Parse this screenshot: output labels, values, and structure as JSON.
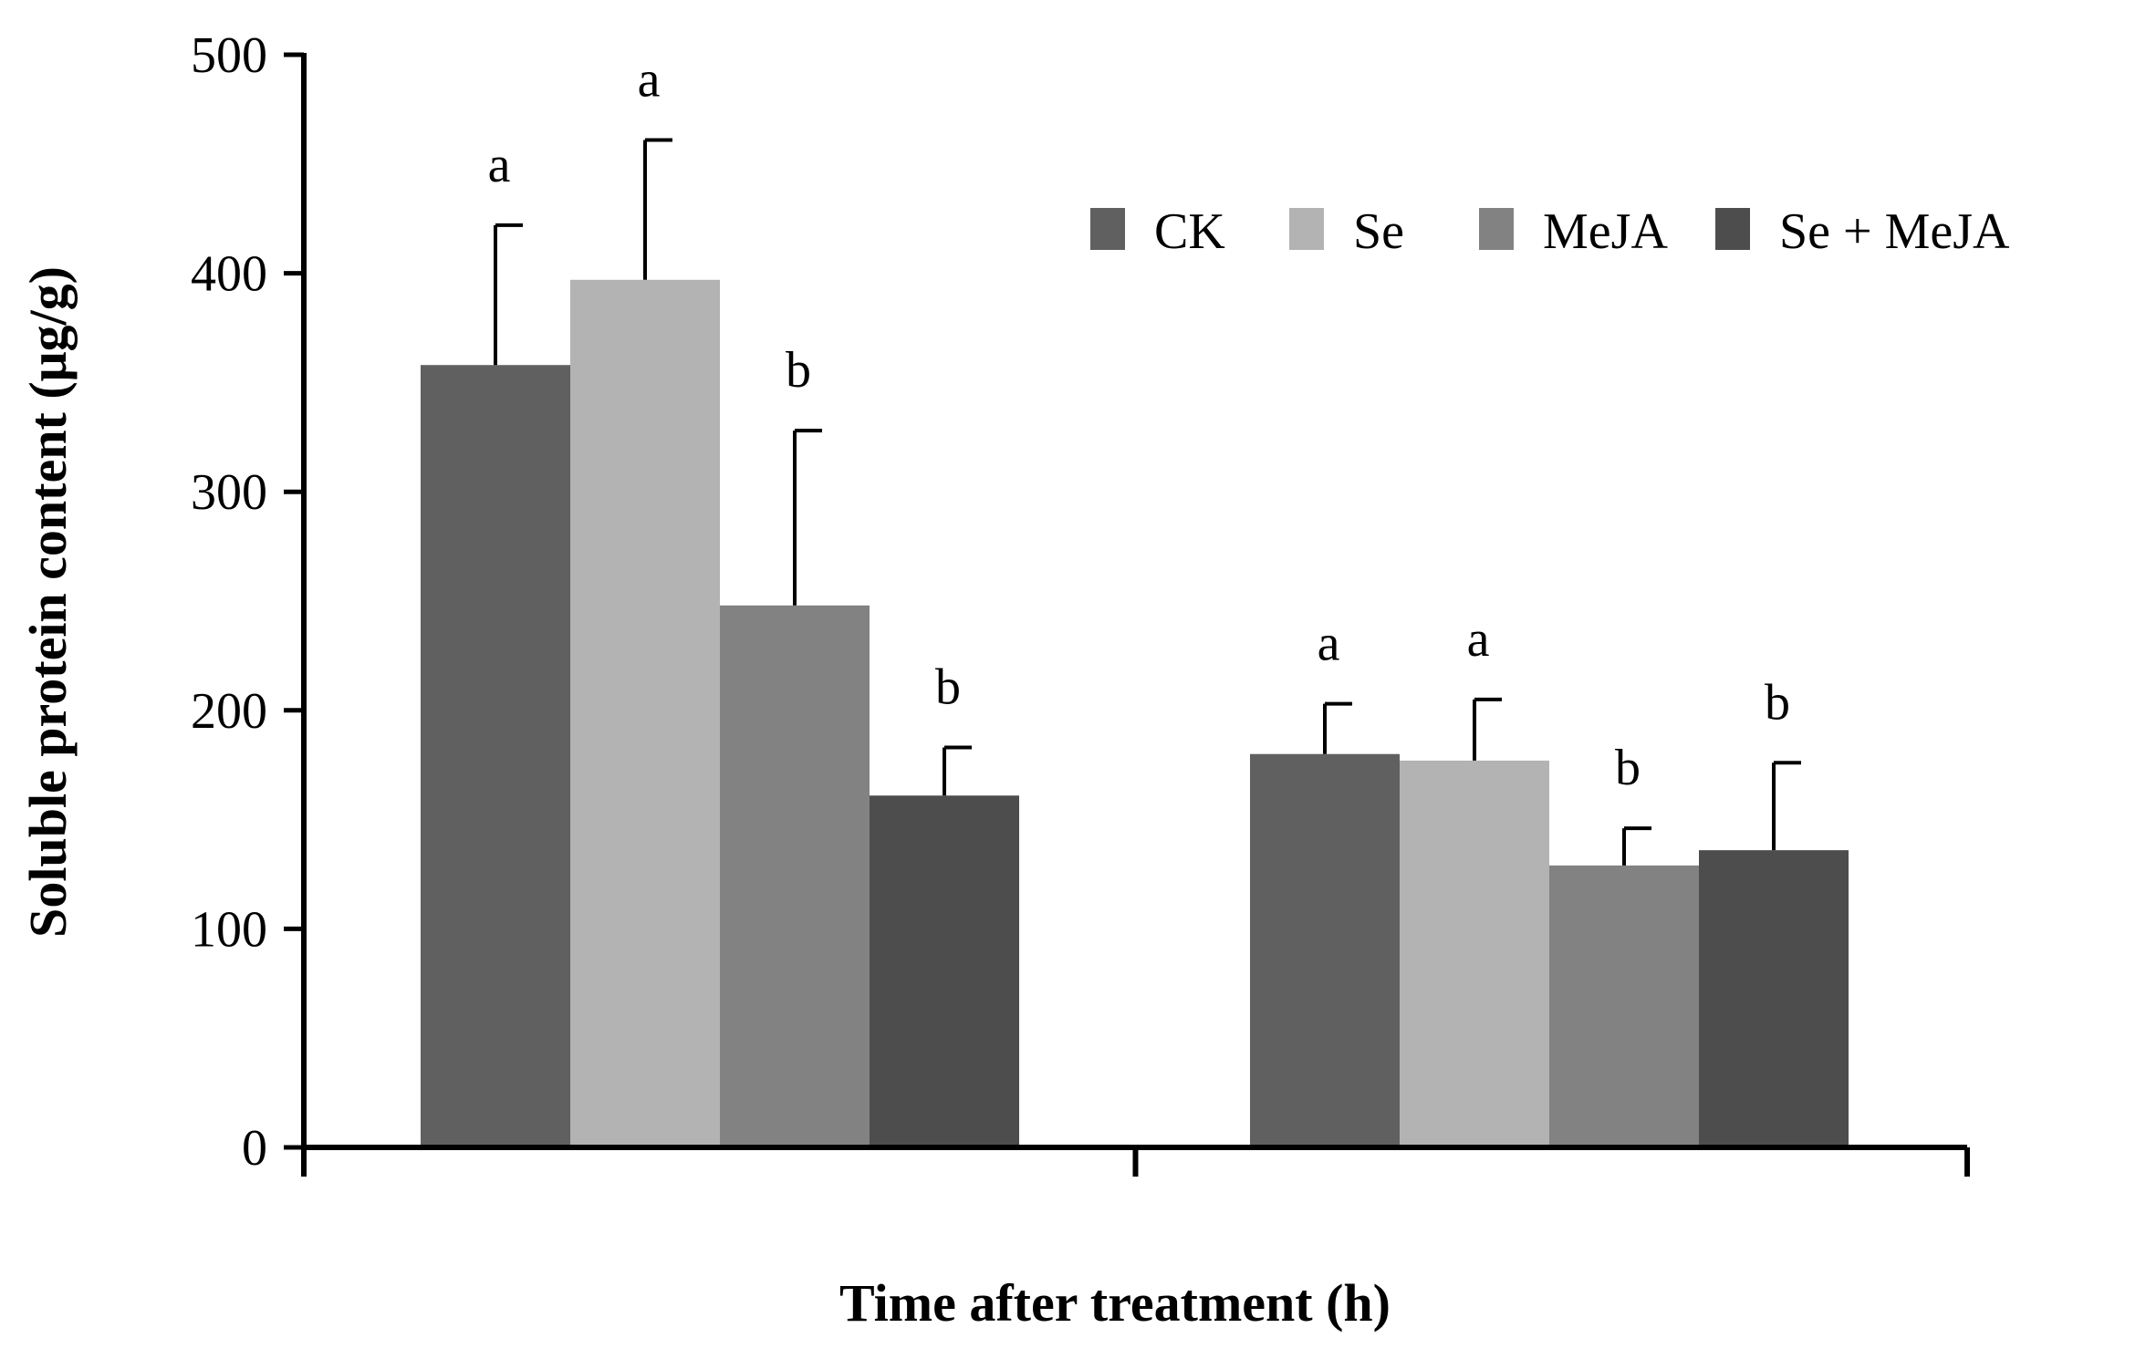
{
  "chart_data": {
    "type": "bar",
    "title": "",
    "xlabel": "Time after treatment (h)",
    "ylabel": "Soluble protein content (μg/g)",
    "ylim": [
      0,
      500
    ],
    "yticks": [
      0,
      100,
      200,
      300,
      400,
      500
    ],
    "categories": [
      "",
      ""
    ],
    "legend_position": "top-right",
    "series": [
      {
        "name": "CK",
        "color": "#606060",
        "values": [
          358,
          180
        ],
        "errors": [
          64,
          23
        ],
        "letters": [
          "a",
          "a"
        ]
      },
      {
        "name": "Se",
        "color": "#b3b3b3",
        "values": [
          397,
          177
        ],
        "errors": [
          64,
          28
        ],
        "letters": [
          "a",
          "a"
        ]
      },
      {
        "name": "MeJA",
        "color": "#828282",
        "values": [
          248,
          129
        ],
        "errors": [
          80,
          17
        ],
        "letters": [
          "b",
          "b"
        ]
      },
      {
        "name": "Se + MeJA",
        "color": "#4d4d4d",
        "values": [
          161,
          136
        ],
        "errors": [
          22,
          40
        ],
        "letters": [
          "b",
          "b"
        ]
      }
    ]
  }
}
